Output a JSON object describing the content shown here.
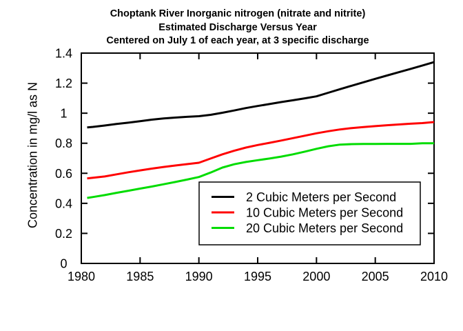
{
  "chart_data": {
    "type": "line",
    "title_lines": [
      "Choptank River Inorganic nitrogen (nitrate and nitrite)",
      "Estimated Discharge Versus Year",
      "Centered on July 1 of each year, at 3 specific discharge"
    ],
    "xlabel": "",
    "ylabel": "Concentration in mg/l as N",
    "xlim": [
      1980,
      2010
    ],
    "ylim": [
      0,
      1.4
    ],
    "grid": false,
    "frame": "box-with-inward-ticks",
    "legend_position": "inside-lower-right",
    "x_ticks": {
      "values": [
        1980,
        1985,
        1990,
        1995,
        2000,
        2005,
        2010
      ],
      "labels": [
        "1980",
        "1985",
        "1990",
        "1995",
        "2000",
        "2005",
        "2010"
      ]
    },
    "y_ticks": {
      "values": [
        0,
        0.2,
        0.4,
        0.6,
        0.8,
        1.0,
        1.2,
        1.4
      ],
      "labels": [
        "0",
        "0.2",
        "0.4",
        "0.6",
        "0.8",
        "1",
        "1.2",
        "1.4"
      ]
    },
    "x": [
      1980.5,
      1981,
      1982,
      1983,
      1984,
      1985,
      1986,
      1987,
      1988,
      1989,
      1990,
      1991,
      1992,
      1993,
      1994,
      1995,
      1996,
      1997,
      1998,
      1999,
      2000,
      2001,
      2002,
      2003,
      2004,
      2005,
      2006,
      2007,
      2008,
      2009,
      2010
    ],
    "series": [
      {
        "name": "2 Cubic Meters per Second",
        "color": "#000000",
        "values": [
          0.905,
          0.909,
          0.918,
          0.928,
          0.937,
          0.947,
          0.957,
          0.965,
          0.971,
          0.976,
          0.98,
          0.989,
          1.003,
          1.018,
          1.034,
          1.048,
          1.061,
          1.074,
          1.086,
          1.099,
          1.112,
          1.136,
          1.16,
          1.183,
          1.206,
          1.229,
          1.251,
          1.273,
          1.295,
          1.317,
          1.34
        ]
      },
      {
        "name": "10 Cubic Meters per Second",
        "color": "#ff0000",
        "values": [
          0.566,
          0.57,
          0.579,
          0.593,
          0.607,
          0.619,
          0.631,
          0.642,
          0.652,
          0.661,
          0.67,
          0.698,
          0.726,
          0.75,
          0.771,
          0.788,
          0.803,
          0.818,
          0.834,
          0.85,
          0.866,
          0.88,
          0.892,
          0.901,
          0.908,
          0.914,
          0.92,
          0.925,
          0.93,
          0.934,
          0.941
        ]
      },
      {
        "name": "20 Cubic Meters per Second",
        "color": "#00dc00",
        "values": [
          0.436,
          0.442,
          0.455,
          0.47,
          0.484,
          0.498,
          0.512,
          0.527,
          0.542,
          0.558,
          0.575,
          0.605,
          0.638,
          0.66,
          0.675,
          0.687,
          0.698,
          0.711,
          0.726,
          0.744,
          0.763,
          0.78,
          0.791,
          0.794,
          0.795,
          0.795,
          0.796,
          0.796,
          0.796,
          0.8,
          0.8
        ]
      }
    ],
    "axis_color": "#000000",
    "background_color": "#ffffff"
  }
}
